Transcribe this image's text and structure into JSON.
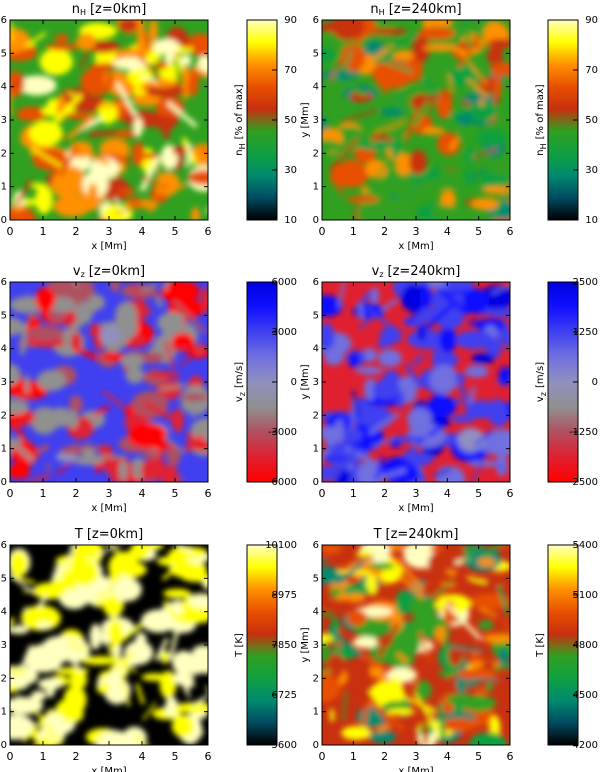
{
  "chart_data": [
    {
      "type": "heatmap",
      "title": {
        "main": "n",
        "sub": "H",
        "tail": "[z=0km]"
      },
      "x_label": "x [Mm]",
      "xlim": [
        0,
        6
      ],
      "ylim": [
        0,
        6
      ],
      "xticks": [
        0,
        1,
        2,
        3,
        4,
        5,
        6
      ],
      "yticks": [
        0,
        1,
        2,
        3,
        4,
        5,
        6
      ],
      "colorbar": {
        "label": {
          "main": "n",
          "sub": "H",
          "tail": "[% of max]"
        },
        "lim": [
          10,
          90
        ],
        "ticks": [
          10,
          30,
          50,
          70,
          90
        ],
        "colormap": [
          "#000000",
          "#004a60",
          "#008a70",
          "#10a040",
          "#30a020",
          "#c83010",
          "#e85000",
          "#ff9000",
          "#ffff00",
          "#ffffc0"
        ]
      }
    },
    {
      "type": "heatmap",
      "title": {
        "main": "n",
        "sub": "H",
        "tail": "[z=240km]"
      },
      "x_label": "x [Mm]",
      "y_label": "y [Mm]",
      "xlim": [
        0,
        6
      ],
      "ylim": [
        0,
        6
      ],
      "xticks": [
        0,
        1,
        2,
        3,
        4,
        5,
        6
      ],
      "yticks": [
        0,
        1,
        2,
        3,
        4,
        5,
        6
      ],
      "colorbar": {
        "label": {
          "main": "n",
          "sub": "H",
          "tail": "[% of max]"
        },
        "lim": [
          10,
          90
        ],
        "ticks": [
          10,
          30,
          50,
          70,
          90
        ],
        "colormap": [
          "#000000",
          "#004a60",
          "#008a70",
          "#10a040",
          "#30a020",
          "#c83010",
          "#e85000",
          "#ff9000",
          "#ffff00",
          "#ffffc0"
        ]
      }
    },
    {
      "type": "heatmap",
      "title": {
        "main": "v",
        "sub": "z",
        "tail": "[z=0km]"
      },
      "x_label": "x [Mm]",
      "xlim": [
        0,
        6
      ],
      "ylim": [
        0,
        6
      ],
      "xticks": [
        0,
        1,
        2,
        3,
        4,
        5,
        6
      ],
      "yticks": [
        0,
        1,
        2,
        3,
        4,
        5,
        6
      ],
      "colorbar": {
        "label": {
          "main": "v",
          "sub": "z",
          "tail": "[m/s]"
        },
        "lim": [
          -6000,
          6000
        ],
        "ticks": [
          -6000,
          -3000,
          0,
          3000,
          6000
        ],
        "colormap": [
          "#ff0000",
          "#e02030",
          "#b05060",
          "#909090",
          "#9090c0",
          "#7070e0",
          "#4040f0",
          "#1010ff",
          "#0000e0"
        ]
      }
    },
    {
      "type": "heatmap",
      "title": {
        "main": "v",
        "sub": "z",
        "tail": "[z=240km]"
      },
      "x_label": "x [Mm]",
      "y_label": "y [Mm]",
      "xlim": [
        0,
        6
      ],
      "ylim": [
        0,
        6
      ],
      "xticks": [
        0,
        1,
        2,
        3,
        4,
        5,
        6
      ],
      "yticks": [
        0,
        1,
        2,
        3,
        4,
        5,
        6
      ],
      "colorbar": {
        "label": {
          "main": "v",
          "sub": "z",
          "tail": "[m/s]"
        },
        "lim": [
          -2500,
          2500
        ],
        "ticks": [
          -2500,
          -1250,
          0,
          1250,
          2500
        ],
        "colormap": [
          "#ff0000",
          "#e02030",
          "#b05060",
          "#909090",
          "#9090c0",
          "#7070e0",
          "#4040f0",
          "#1010ff",
          "#0000e0"
        ]
      }
    },
    {
      "type": "heatmap",
      "title": {
        "main": "T",
        "tail": "[z=0km]"
      },
      "x_label": "x [Mm]",
      "xlim": [
        0,
        6
      ],
      "ylim": [
        0,
        6
      ],
      "xticks": [
        0,
        1,
        2,
        3,
        4,
        5,
        6
      ],
      "yticks": [
        0,
        1,
        2,
        3,
        4,
        5,
        6
      ],
      "colorbar": {
        "label": {
          "main": "T [K]"
        },
        "lim": [
          5600,
          10100
        ],
        "ticks": [
          5600,
          6725,
          7850,
          8975,
          10100
        ],
        "colormap": [
          "#000000",
          "#004a60",
          "#008a70",
          "#10a040",
          "#30a020",
          "#c83010",
          "#e85000",
          "#ff9000",
          "#ffff00",
          "#ffffc0"
        ]
      }
    },
    {
      "type": "heatmap",
      "title": {
        "main": "T",
        "tail": "[z=240km]"
      },
      "x_label": "x [Mm]",
      "y_label": "y [Mm]",
      "xlim": [
        0,
        6
      ],
      "ylim": [
        0,
        6
      ],
      "xticks": [
        0,
        1,
        2,
        3,
        4,
        5,
        6
      ],
      "yticks": [
        0,
        1,
        2,
        3,
        4,
        5,
        6
      ],
      "colorbar": {
        "label": {
          "main": "T [K]"
        },
        "lim": [
          4200,
          5400
        ],
        "ticks": [
          4200,
          4500,
          4800,
          5100,
          5400
        ],
        "colormap": [
          "#000000",
          "#004a60",
          "#008a70",
          "#10a040",
          "#30a020",
          "#c83010",
          "#e85000",
          "#ff9000",
          "#ffff00",
          "#ffffc0"
        ]
      }
    }
  ]
}
